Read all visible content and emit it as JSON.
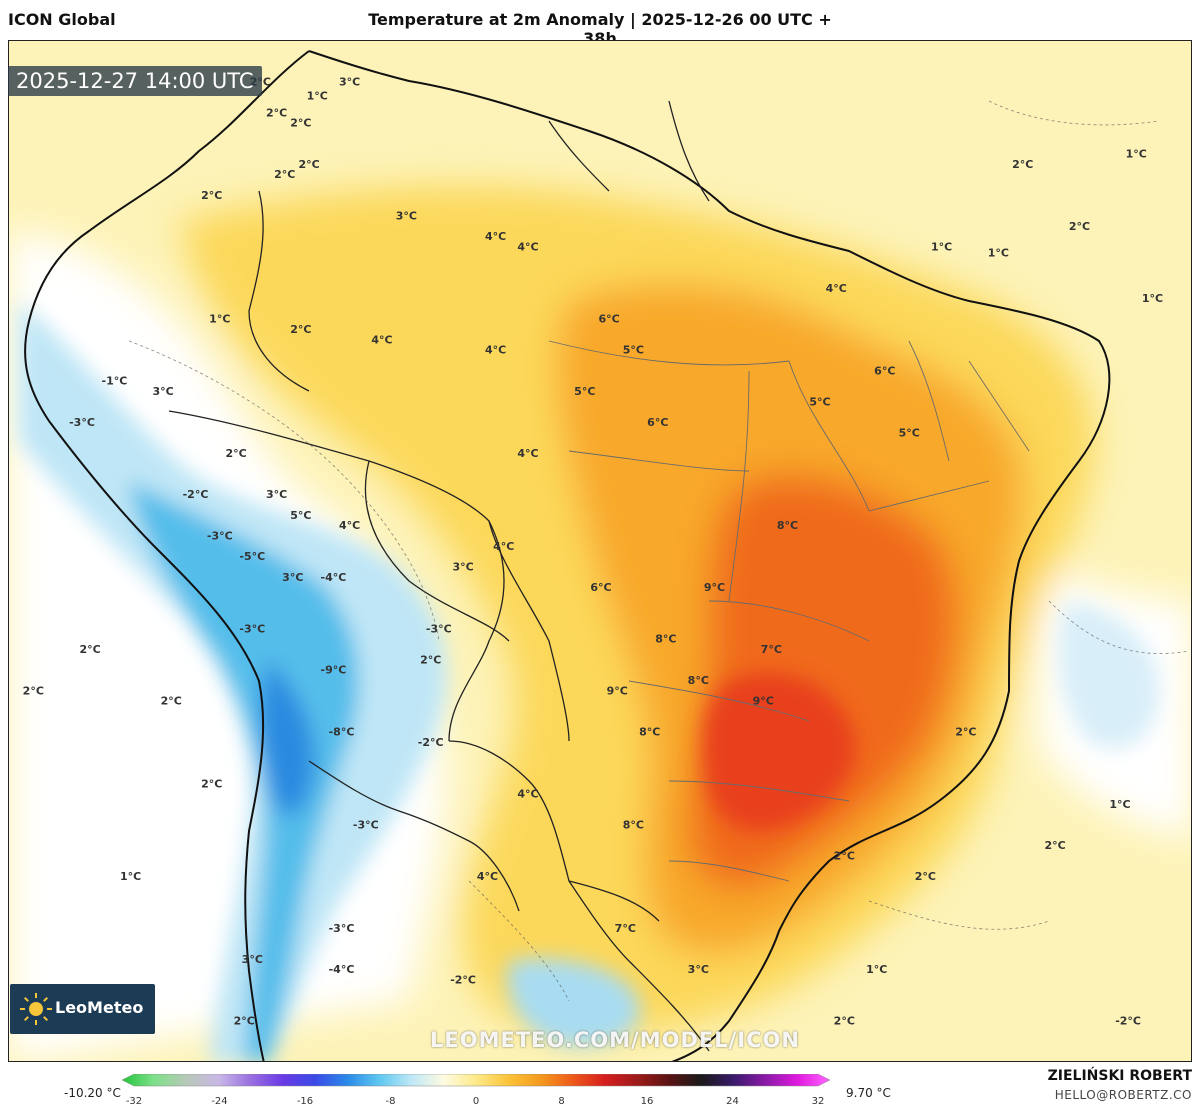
{
  "header": {
    "model_name": "ICON Global",
    "title": "Temperature at 2m Anomaly | 2025-12-26 00 UTC + 38h"
  },
  "valid_time": "2025-12-27 14:00 UTC",
  "logo": {
    "text": "LeoMeteo",
    "icon": "sun-icon"
  },
  "watermark": "LEOMETEO.COM/MODEL/ICON",
  "author": {
    "name": "ZIELIŃSKI ROBERT",
    "email": "HELLO@ROBERTZ.CO"
  },
  "legend": {
    "min_label": "-10.20 °C",
    "max_label": "9.70 °C",
    "ticks": [
      "-32",
      "-24",
      "-16",
      "-8",
      "0",
      "8",
      "16",
      "24",
      "32"
    ],
    "range": [
      -32,
      32
    ],
    "colors": [
      "#22c43a",
      "#7ee08a",
      "#b8c8b8",
      "#c9b8e6",
      "#9a6fe0",
      "#6a3ae6",
      "#3a4ae6",
      "#2a8ae8",
      "#5fc8f0",
      "#bfe8f6",
      "#fffbe0",
      "#fde98a",
      "#fbc43a",
      "#f59a1e",
      "#ee5a1a",
      "#d61e1e",
      "#9e1a1a",
      "#5a1414",
      "#1a1a1a",
      "#3a1a6a",
      "#8a1aa8",
      "#e01ae0",
      "#ff66ff"
    ]
  },
  "map_labels": [
    {
      "text": "2°C",
      "lon": -76.5,
      "lat": 7.5
    },
    {
      "text": "2°C",
      "lon": -75.5,
      "lat": 6.0
    },
    {
      "text": "2°C",
      "lon": -79.5,
      "lat": 2.0
    },
    {
      "text": "1°C",
      "lon": -73.0,
      "lat": 6.8
    },
    {
      "text": "3°C",
      "lon": -71.0,
      "lat": 7.5
    },
    {
      "text": "2°C",
      "lon": -74.0,
      "lat": 5.5
    },
    {
      "text": "2°C",
      "lon": -73.5,
      "lat": 3.5
    },
    {
      "text": "2°C",
      "lon": -75.0,
      "lat": 3.0
    },
    {
      "text": "3°C",
      "lon": -67.5,
      "lat": 1.0
    },
    {
      "text": "4°C",
      "lon": -62.0,
      "lat": 0.0
    },
    {
      "text": "4°C",
      "lon": -60.0,
      "lat": -0.5
    },
    {
      "text": "2°C",
      "lon": -74.0,
      "lat": -4.5
    },
    {
      "text": "4°C",
      "lon": -69.0,
      "lat": -5.0
    },
    {
      "text": "1°C",
      "lon": -79.0,
      "lat": -4.0
    },
    {
      "text": "6°C",
      "lon": -55.0,
      "lat": -4.0
    },
    {
      "text": "5°C",
      "lon": -53.5,
      "lat": -5.5
    },
    {
      "text": "4°C",
      "lon": -62.0,
      "lat": -5.5
    },
    {
      "text": "5°C",
      "lon": -56.5,
      "lat": -7.5
    },
    {
      "text": "6°C",
      "lon": -52.0,
      "lat": -9.0
    },
    {
      "text": "4°C",
      "lon": -60.0,
      "lat": -10.5
    },
    {
      "text": "4°C",
      "lon": -41.0,
      "lat": -2.5
    },
    {
      "text": "6°C",
      "lon": -38.0,
      "lat": -6.5
    },
    {
      "text": "5°C",
      "lon": -42.0,
      "lat": -8.0
    },
    {
      "text": "5°C",
      "lon": -36.5,
      "lat": -9.5
    },
    {
      "text": "2°C",
      "lon": -78.0,
      "lat": -10.5
    },
    {
      "text": "3°C",
      "lon": -82.5,
      "lat": -7.5
    },
    {
      "text": "3°C",
      "lon": -75.5,
      "lat": -12.5
    },
    {
      "text": "5°C",
      "lon": -74.0,
      "lat": -13.5
    },
    {
      "text": "4°C",
      "lon": -71.0,
      "lat": -14.0
    },
    {
      "text": "3°C",
      "lon": -74.5,
      "lat": -16.5
    },
    {
      "text": "3°C",
      "lon": -64.0,
      "lat": -16.0
    },
    {
      "text": "4°C",
      "lon": -61.5,
      "lat": -15.0
    },
    {
      "text": "6°C",
      "lon": -55.5,
      "lat": -17.0
    },
    {
      "text": "8°C",
      "lon": -44.0,
      "lat": -14.0
    },
    {
      "text": "9°C",
      "lon": -48.5,
      "lat": -17.0
    },
    {
      "text": "8°C",
      "lon": -51.5,
      "lat": -19.5
    },
    {
      "text": "7°C",
      "lon": -45.0,
      "lat": -20.0
    },
    {
      "text": "9°C",
      "lon": -54.5,
      "lat": -22.0
    },
    {
      "text": "8°C",
      "lon": -49.5,
      "lat": -21.5
    },
    {
      "text": "9°C",
      "lon": -45.5,
      "lat": -22.5
    },
    {
      "text": "8°C",
      "lon": -52.5,
      "lat": -24.0
    },
    {
      "text": "2°C",
      "lon": -66.0,
      "lat": -20.5
    },
    {
      "text": "-2°C",
      "lon": -66.0,
      "lat": -24.5
    },
    {
      "text": "-9°C",
      "lon": -72.0,
      "lat": -21.0
    },
    {
      "text": "-8°C",
      "lon": -71.5,
      "lat": -24.0
    },
    {
      "text": "2°C",
      "lon": -87.0,
      "lat": -20.0
    },
    {
      "text": "2°C",
      "lon": -90.5,
      "lat": -22.0
    },
    {
      "text": "2°C",
      "lon": -82.0,
      "lat": -22.5
    },
    {
      "text": "2°C",
      "lon": -79.5,
      "lat": -26.5
    },
    {
      "text": "-3°C",
      "lon": -70.0,
      "lat": -28.5
    },
    {
      "text": "4°C",
      "lon": -60.0,
      "lat": -27.0
    },
    {
      "text": "8°C",
      "lon": -53.5,
      "lat": -28.5
    },
    {
      "text": "2°C",
      "lon": -33.0,
      "lat": -24.0
    },
    {
      "text": "1°C",
      "lon": -84.5,
      "lat": -31.0
    },
    {
      "text": "-3°C",
      "lon": -71.5,
      "lat": -33.5
    },
    {
      "text": "4°C",
      "lon": -62.5,
      "lat": -31.0
    },
    {
      "text": "7°C",
      "lon": -54.0,
      "lat": -33.5
    },
    {
      "text": "2°C",
      "lon": -40.5,
      "lat": -30.0
    },
    {
      "text": "2°C",
      "lon": -35.5,
      "lat": -31.0
    },
    {
      "text": "2°C",
      "lon": -27.5,
      "lat": -29.5
    },
    {
      "text": "1°C",
      "lon": -23.5,
      "lat": -27.5
    },
    {
      "text": "-4°C",
      "lon": -71.5,
      "lat": -35.5
    },
    {
      "text": "3°C",
      "lon": -77.0,
      "lat": -35.0
    },
    {
      "text": "-2°C",
      "lon": -64.0,
      "lat": -36.0
    },
    {
      "text": "3°C",
      "lon": -49.5,
      "lat": -35.5
    },
    {
      "text": "1°C",
      "lon": -38.5,
      "lat": -35.5
    },
    {
      "text": "2°C",
      "lon": -77.5,
      "lat": -38.0
    },
    {
      "text": "2°C",
      "lon": -40.5,
      "lat": -38.0
    },
    {
      "text": "-2°C",
      "lon": -23.0,
      "lat": -38.0
    },
    {
      "text": "1°C",
      "lon": -34.5,
      "lat": -0.5
    },
    {
      "text": "1°C",
      "lon": -31.0,
      "lat": -0.8
    },
    {
      "text": "2°C",
      "lon": -29.5,
      "lat": 3.5
    },
    {
      "text": "2°C",
      "lon": -26.0,
      "lat": 0.5
    },
    {
      "text": "1°C",
      "lon": -22.5,
      "lat": 4.0
    },
    {
      "text": "1°C",
      "lon": -21.5,
      "lat": -3.0
    },
    {
      "text": "-3°C",
      "lon": -87.5,
      "lat": -9.0
    },
    {
      "text": "-1°C",
      "lon": -85.5,
      "lat": -7.0
    },
    {
      "text": "-2°C",
      "lon": -80.5,
      "lat": -12.5
    },
    {
      "text": "-3°C",
      "lon": -79.0,
      "lat": -14.5
    },
    {
      "text": "-5°C",
      "lon": -77.0,
      "lat": -15.5
    },
    {
      "text": "-4°C",
      "lon": -72.0,
      "lat": -16.5
    },
    {
      "text": "-3°C",
      "lon": -77.0,
      "lat": -19.0
    },
    {
      "text": "-3°C",
      "lon": -65.5,
      "lat": -19.0
    }
  ]
}
